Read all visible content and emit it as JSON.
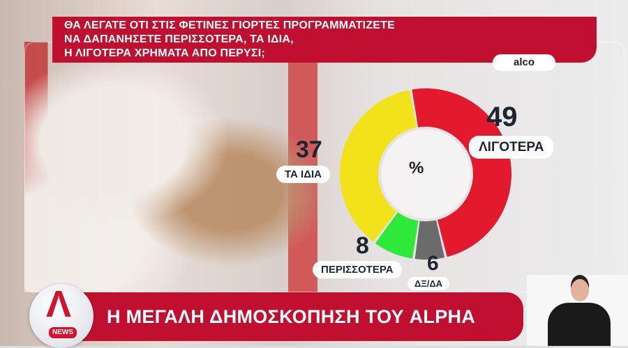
{
  "question": {
    "lines": [
      "ΘΑ ΛΕΓΑΤΕ ΟΤΙ ΣΤΙΣ ΦΕΤΙΝΕΣ ΓΙΟΡΤΕΣ ΠΡΟΓΡΑΜΜΑΤΙΖΕΤΕ",
      "ΝΑ ΔΑΠΑΝΗΣΕΤΕ ΠΕΡΙΣΣΟΤΕΡΑ, ΤΑ ΙΔΙΑ,",
      "Η ΛΙΓΟΤΕΡΑ ΧΡΗΜΑΤΑ ΑΠΟ ΠΕΡΥΣΙ;"
    ]
  },
  "source": "alco",
  "chart_data": {
    "type": "pie",
    "donut": true,
    "center_label": "%",
    "categories": [
      "ΛΙΓΟΤΕΡΑ",
      "ΔΞ/ΔΑ",
      "ΠΕΡΙΣΣΟΤΕΡΑ",
      "ΤΑ ΙΔΙΑ"
    ],
    "values": [
      49,
      6,
      8,
      37
    ],
    "value_labels": [
      "49",
      "6",
      "8",
      "37"
    ],
    "colors": [
      "#e3192e",
      "#6b6b6b",
      "#2ee83a",
      "#f2e21a"
    ]
  },
  "banner": {
    "title": "Η ΜΕΓΑΛΗ ΔΗΜΟΣΚΟΠΗΣΗ ΤΟΥ ALPHA"
  },
  "logo": {
    "letter": "A",
    "badge": "NEWS"
  }
}
